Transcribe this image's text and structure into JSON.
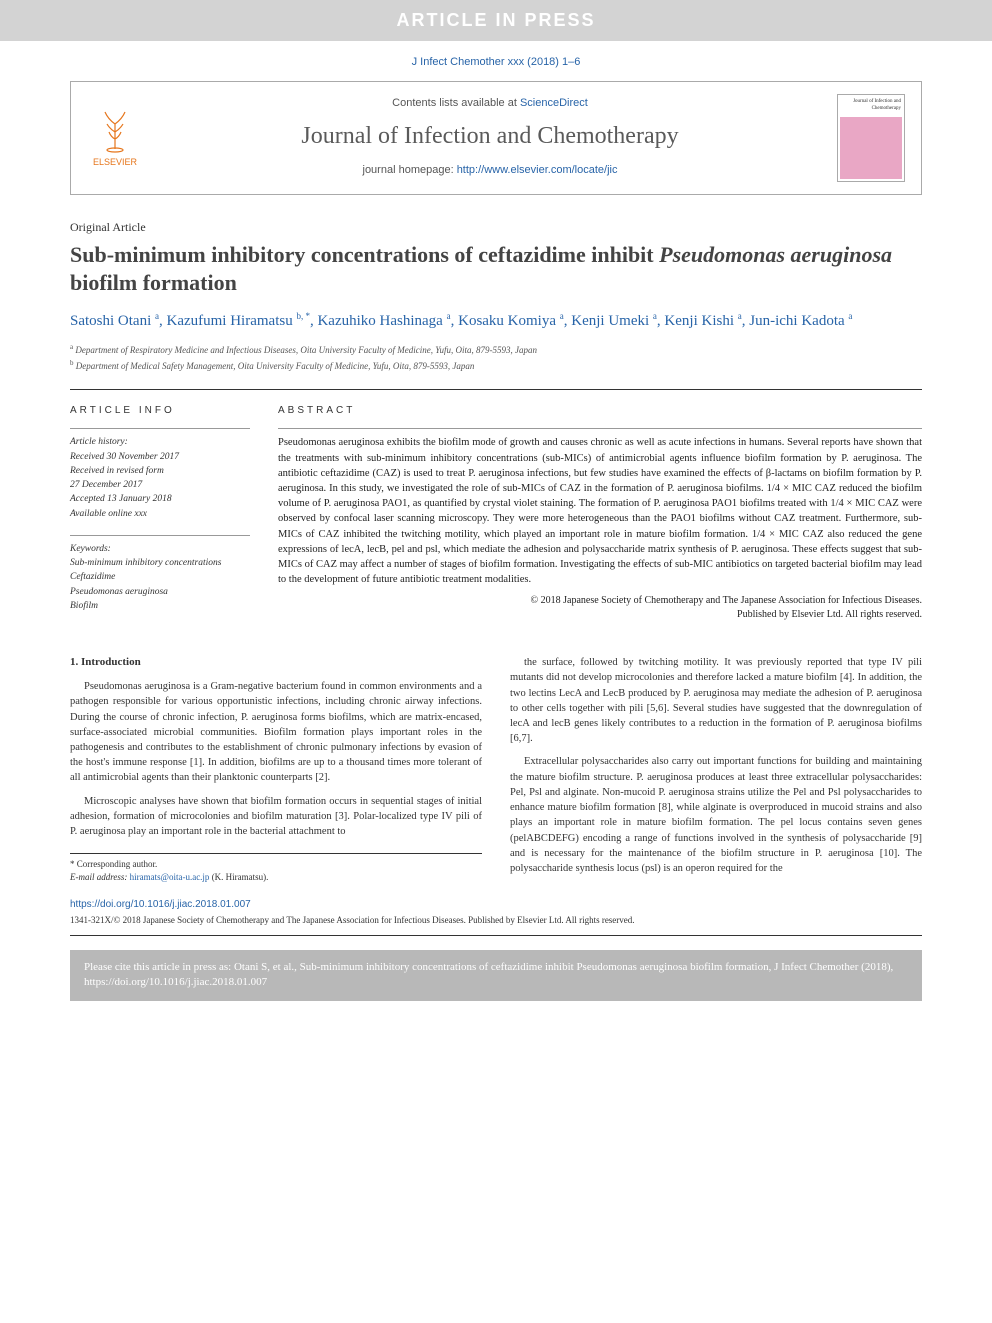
{
  "aip_banner": "ARTICLE IN PRESS",
  "citation_top": "J Infect Chemother xxx (2018) 1–6",
  "header": {
    "contents_prefix": "Contents lists available at ",
    "contents_link": "ScienceDirect",
    "journal_name": "Journal of Infection and Chemotherapy",
    "homepage_prefix": "journal homepage: ",
    "homepage_link": "http://www.elsevier.com/locate/jic",
    "publisher_label": "ELSEVIER",
    "cover_title": "Journal of Infection and Chemotherapy"
  },
  "article_type": "Original Article",
  "title_part1": "Sub-minimum inhibitory concentrations of ceftazidime inhibit ",
  "title_ital": "Pseudomonas aeruginosa",
  "title_part2": " biofilm formation",
  "authors": [
    {
      "name": "Satoshi Otani",
      "mark": "a"
    },
    {
      "name": "Kazufumi Hiramatsu",
      "mark": "b, *"
    },
    {
      "name": "Kazuhiko Hashinaga",
      "mark": "a"
    },
    {
      "name": "Kosaku Komiya",
      "mark": "a"
    },
    {
      "name": "Kenji Umeki",
      "mark": "a"
    },
    {
      "name": "Kenji Kishi",
      "mark": "a"
    },
    {
      "name": "Jun-ichi Kadota",
      "mark": "a"
    }
  ],
  "affils": {
    "a": "Department of Respiratory Medicine and Infectious Diseases, Oita University Faculty of Medicine, Yufu, Oita, 879-5593, Japan",
    "b": "Department of Medical Safety Management, Oita University Faculty of Medicine, Yufu, Oita, 879-5593, Japan"
  },
  "info": {
    "head": "ARTICLE INFO",
    "history_label": "Article history:",
    "history": [
      "Received 30 November 2017",
      "Received in revised form",
      "27 December 2017",
      "Accepted 13 January 2018",
      "Available online xxx"
    ],
    "keywords_label": "Keywords:",
    "keywords": [
      "Sub-minimum inhibitory concentrations",
      "Ceftazidime",
      "Pseudomonas aeruginosa",
      "Biofilm"
    ]
  },
  "abstract": {
    "head": "ABSTRACT",
    "text": "Pseudomonas aeruginosa exhibits the biofilm mode of growth and causes chronic as well as acute infections in humans. Several reports have shown that the treatments with sub-minimum inhibitory concentrations (sub-MICs) of antimicrobial agents influence biofilm formation by P. aeruginosa. The antibiotic ceftazidime (CAZ) is used to treat P. aeruginosa infections, but few studies have examined the effects of β-lactams on biofilm formation by P. aeruginosa. In this study, we investigated the role of sub-MICs of CAZ in the formation of P. aeruginosa biofilms. 1/4 × MIC CAZ reduced the biofilm volume of P. aeruginosa PAO1, as quantified by crystal violet staining. The formation of P. aeruginosa PAO1 biofilms treated with 1/4 × MIC CAZ were observed by confocal laser scanning microscopy. They were more heterogeneous than the PAO1 biofilms without CAZ treatment. Furthermore, sub-MICs of CAZ inhibited the twitching motility, which played an important role in mature biofilm formation. 1/4 × MIC CAZ also reduced the gene expressions of lecA, lecB, pel and psl, which mediate the adhesion and polysaccharide matrix synthesis of P. aeruginosa. These effects suggest that sub-MICs of CAZ may affect a number of stages of biofilm formation. Investigating the effects of sub-MIC antibiotics on targeted bacterial biofilm may lead to the development of future antibiotic treatment modalities.",
    "copyright1": "© 2018 Japanese Society of Chemotherapy and The Japanese Association for Infectious Diseases.",
    "copyright2": "Published by Elsevier Ltd. All rights reserved."
  },
  "body": {
    "sec1_head": "1. Introduction",
    "p1": "Pseudomonas aeruginosa is a Gram-negative bacterium found in common environments and a pathogen responsible for various opportunistic infections, including chronic airway infections. During the course of chronic infection, P. aeruginosa forms biofilms, which are matrix-encased, surface-associated microbial communities. Biofilm formation plays important roles in the pathogenesis and contributes to the establishment of chronic pulmonary infections by evasion of the host's immune response [1]. In addition, biofilms are up to a thousand times more tolerant of all antimicrobial agents than their planktonic counterparts [2].",
    "p2": "Microscopic analyses have shown that biofilm formation occurs in sequential stages of initial adhesion, formation of microcolonies and biofilm maturation [3]. Polar-localized type IV pili of P. aeruginosa play an important role in the bacterial attachment to",
    "p3": "the surface, followed by twitching motility. It was previously reported that type IV pili mutants did not develop microcolonies and therefore lacked a mature biofilm [4]. In addition, the two lectins LecA and LecB produced by P. aeruginosa may mediate the adhesion of P. aeruginosa to other cells together with pili [5,6]. Several studies have suggested that the downregulation of lecA and lecB genes likely contributes to a reduction in the formation of P. aeruginosa biofilms [6,7].",
    "p4": "Extracellular polysaccharides also carry out important functions for building and maintaining the mature biofilm structure. P. aeruginosa produces at least three extracellular polysaccharides: Pel, Psl and alginate. Non-mucoid P. aeruginosa strains utilize the Pel and Psl polysaccharides to enhance mature biofilm formation [8], while alginate is overproduced in mucoid strains and also plays an important role in mature biofilm formation. The pel locus contains seven genes (pelABCDEFG) encoding a range of functions involved in the synthesis of polysaccharide [9] and is necessary for the maintenance of the biofilm structure in P. aeruginosa [10]. The polysaccharide synthesis locus (psl) is an operon required for the"
  },
  "footnote": {
    "corr": "* Corresponding author.",
    "email_label": "E-mail address: ",
    "email": "hiramats@oita-u.ac.jp",
    "email_who": " (K. Hiramatsu)."
  },
  "doi": "https://doi.org/10.1016/j.jiac.2018.01.007",
  "issn": "1341-321X/© 2018 Japanese Society of Chemotherapy and The Japanese Association for Infectious Diseases. Published by Elsevier Ltd. All rights reserved.",
  "cite_box": "Please cite this article in press as: Otani S, et al., Sub-minimum inhibitory concentrations of ceftazidime inhibit Pseudomonas aeruginosa biofilm formation, J Infect Chemother (2018), https://doi.org/10.1016/j.jiac.2018.01.007"
}
